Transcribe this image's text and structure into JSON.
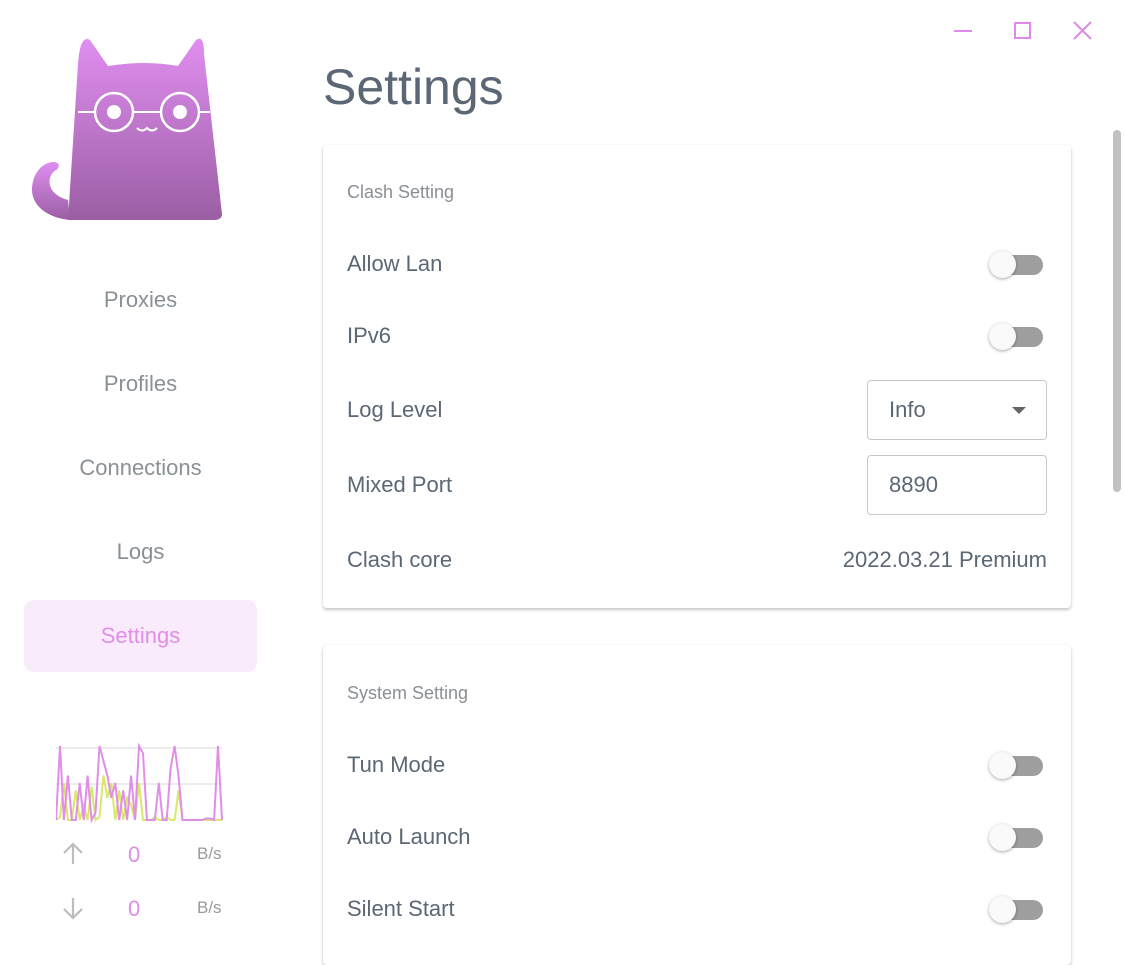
{
  "window": {
    "controls": [
      "minimize",
      "maximize",
      "close"
    ],
    "accent": "#dd8ae8"
  },
  "sidebar": {
    "items": [
      {
        "label": "Proxies"
      },
      {
        "label": "Profiles"
      },
      {
        "label": "Connections"
      },
      {
        "label": "Logs"
      },
      {
        "label": "Settings",
        "active": true
      }
    ],
    "traffic": {
      "upload": "0",
      "download": "0",
      "unit": "B/s",
      "upload_series": [
        0,
        100,
        0,
        60,
        0,
        0,
        50,
        0,
        60,
        0,
        10,
        100,
        80,
        60,
        30,
        50,
        0,
        40,
        0,
        60,
        0,
        100,
        90,
        0,
        0,
        0,
        50,
        0,
        0,
        70,
        100,
        60,
        0,
        0,
        0,
        0,
        0,
        0,
        2,
        2,
        0,
        100,
        0
      ],
      "download_series": [
        0,
        4,
        50,
        0,
        0,
        40,
        0,
        20,
        0,
        45,
        0,
        4,
        60,
        30,
        50,
        0,
        40,
        0,
        30,
        20,
        0,
        50,
        0,
        0,
        0,
        4,
        0,
        0,
        4,
        0,
        0,
        40,
        0,
        0,
        0,
        0,
        0,
        0,
        0,
        0,
        0,
        0,
        0
      ],
      "upload_color": "#e08ee8",
      "download_color": "#d9e86a"
    }
  },
  "main": {
    "title": "Settings",
    "clash": {
      "header": "Clash Setting",
      "allow_lan": {
        "label": "Allow Lan",
        "on": false
      },
      "ipv6": {
        "label": "IPv6",
        "on": false
      },
      "log_level": {
        "label": "Log Level",
        "value": "Info"
      },
      "mixed_port": {
        "label": "Mixed Port",
        "value": "8890"
      },
      "core": {
        "label": "Clash core",
        "value": "2022.03.21 Premium"
      }
    },
    "system": {
      "header": "System Setting",
      "tun": {
        "label": "Tun Mode",
        "on": false
      },
      "auto_launch": {
        "label": "Auto Launch",
        "on": false
      },
      "silent": {
        "label": "Silent Start",
        "on": false
      }
    }
  }
}
